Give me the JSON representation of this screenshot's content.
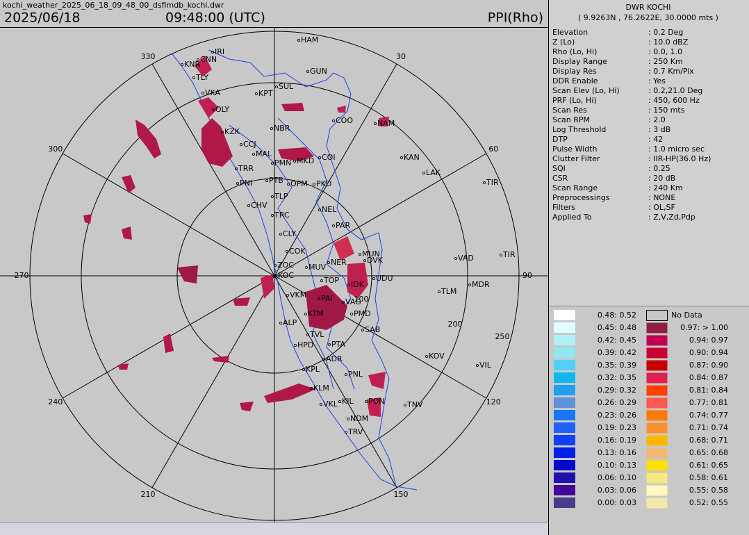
{
  "header": {
    "file": "kochi_weather_2025_06_18_09_48_00_dsfimdb_kochi.dwr",
    "date": "2025/06/18",
    "time": "09:48:00 (UTC)",
    "product": "PPI(Rho)"
  },
  "radar": {
    "name": "DWR KOCHI",
    "location": "( 9.9263N , 76.2622E, 30.0000 mts )"
  },
  "params": [
    [
      "Elevation",
      ": 0.2 Deg"
    ],
    [
      "Z (Lo)",
      ": 10.0 dBZ"
    ],
    [
      "Rho (Lo, Hi)",
      ": 0.0, 1.0"
    ],
    [
      "Display Range",
      ": 250 Km"
    ],
    [
      "Display Res",
      ": 0.7 Km/Pix"
    ],
    [
      "DDR Enable",
      ": Yes"
    ],
    [
      "Scan Elev (Lo, Hi)",
      ": 0.2,21.0 Deg"
    ],
    [
      "PRF (Lo, Hi)",
      ": 450, 600 Hz"
    ],
    [
      "Scan Res",
      ": 150 mts"
    ],
    [
      "Scan RPM",
      ": 2.0"
    ],
    [
      "Log Threshold",
      ": 3 dB"
    ],
    [
      "DTP",
      ": 42"
    ],
    [
      "Pulse Width",
      ": 1.0 micro sec"
    ],
    [
      "Clutter Filter",
      ": IIR-HP(36.0 Hz)"
    ],
    [
      "SQI",
      ": 0.25"
    ],
    [
      "CSR",
      ": 20 dB"
    ],
    [
      "Scan Range",
      ": 240 Km"
    ],
    [
      "Preprocessings",
      ": NONE"
    ],
    [
      "Filters",
      ": OL,SF"
    ],
    [
      "Applied To",
      ": Z,V,Zd,Pdp"
    ]
  ],
  "azimuth_labels": [
    "30",
    "60",
    "90",
    "120",
    "150",
    "210",
    "240",
    "270",
    "300",
    "330"
  ],
  "range_labels": [
    "100",
    "200",
    "250"
  ],
  "stations": [
    "HAM",
    "IRI",
    "CNN",
    "KNR",
    "GUN",
    "TLY",
    "SUL",
    "VKA",
    "KPT",
    "OLY",
    "COO",
    "NAM",
    "NBR",
    "KZK",
    "CCJ",
    "MAL",
    "COI",
    "MKD",
    "PMN",
    "KAN",
    "LAK",
    "TRR",
    "TIR",
    "PTB",
    "OPM",
    "PKD",
    "PNI",
    "TLP",
    "CHV",
    "NEL",
    "TRC",
    "PAR",
    "CLY",
    "COK",
    "MUN",
    "VAD",
    "TIR",
    "ZOC",
    "MUV",
    "NER",
    "DVK",
    "UDU",
    "KOC",
    "TOP",
    "MDR",
    "IDK",
    "TLM",
    "VKM",
    "PAI",
    "VAG",
    "KTM",
    "PMD",
    "ALP",
    "SAB",
    "TVL",
    "PTA",
    "HPD",
    "KOV",
    "VIL",
    "ADR",
    "KPL",
    "PNL",
    "KLM",
    "KIL",
    "VKL",
    "PON",
    "TNV",
    "NDM",
    "TRV"
  ],
  "legend_left": [
    {
      "label": "0.48:  0.52",
      "color": "#ffffff"
    },
    {
      "label": "0.45:  0.48",
      "color": "#e0ffff"
    },
    {
      "label": "0.42:  0.45",
      "color": "#b0f0f8"
    },
    {
      "label": "0.39:  0.42",
      "color": "#90e8f0"
    },
    {
      "label": "0.35:  0.39",
      "color": "#50d0f8"
    },
    {
      "label": "0.32:  0.35",
      "color": "#10b8f0"
    },
    {
      "label": "0.29:  0.32",
      "color": "#20a0f0"
    },
    {
      "label": "0.26:  0.29",
      "color": "#6090d8"
    },
    {
      "label": "0.23:  0.26",
      "color": "#1878f8"
    },
    {
      "label": "0.19:  0.23",
      "color": "#2060f8"
    },
    {
      "label": "0.16:  0.19",
      "color": "#1040f8"
    },
    {
      "label": "0.13:  0.16",
      "color": "#0020e8"
    },
    {
      "label": "0.10:  0.13",
      "color": "#0808c8"
    },
    {
      "label": "0.06:  0.10",
      "color": "#2010b0"
    },
    {
      "label": "0.03:  0.06",
      "color": "#400898"
    },
    {
      "label": "0.00:  0.03",
      "color": "#483c88"
    }
  ],
  "legend_right": [
    {
      "label": "No Data",
      "color": "#c8c8c8"
    },
    {
      "label": "0.97: > 1.00",
      "color": "#902040"
    },
    {
      "label": "0.94:  0.97",
      "color": "#c00050"
    },
    {
      "label": "0.90:  0.94",
      "color": "#c80030"
    },
    {
      "label": "0.87:  0.90",
      "color": "#c80000"
    },
    {
      "label": "0.84:  0.87",
      "color": "#e02050"
    },
    {
      "label": "0.81:  0.84",
      "color": "#ff4000"
    },
    {
      "label": "0.77:  0.81",
      "color": "#ff5850"
    },
    {
      "label": "0.74:  0.77",
      "color": "#ff7800"
    },
    {
      "label": "0.71:  0.74",
      "color": "#f89030"
    },
    {
      "label": "0.68:  0.71",
      "color": "#ffb800"
    },
    {
      "label": "0.65:  0.68",
      "color": "#f0b878"
    },
    {
      "label": "0.61:  0.65",
      "color": "#ffe000"
    },
    {
      "label": "0.58:  0.61",
      "color": "#f8e880"
    },
    {
      "label": "0.55:  0.58",
      "color": "#fff8c0"
    },
    {
      "label": "0.52:  0.55",
      "color": "#f0e8a8"
    }
  ]
}
